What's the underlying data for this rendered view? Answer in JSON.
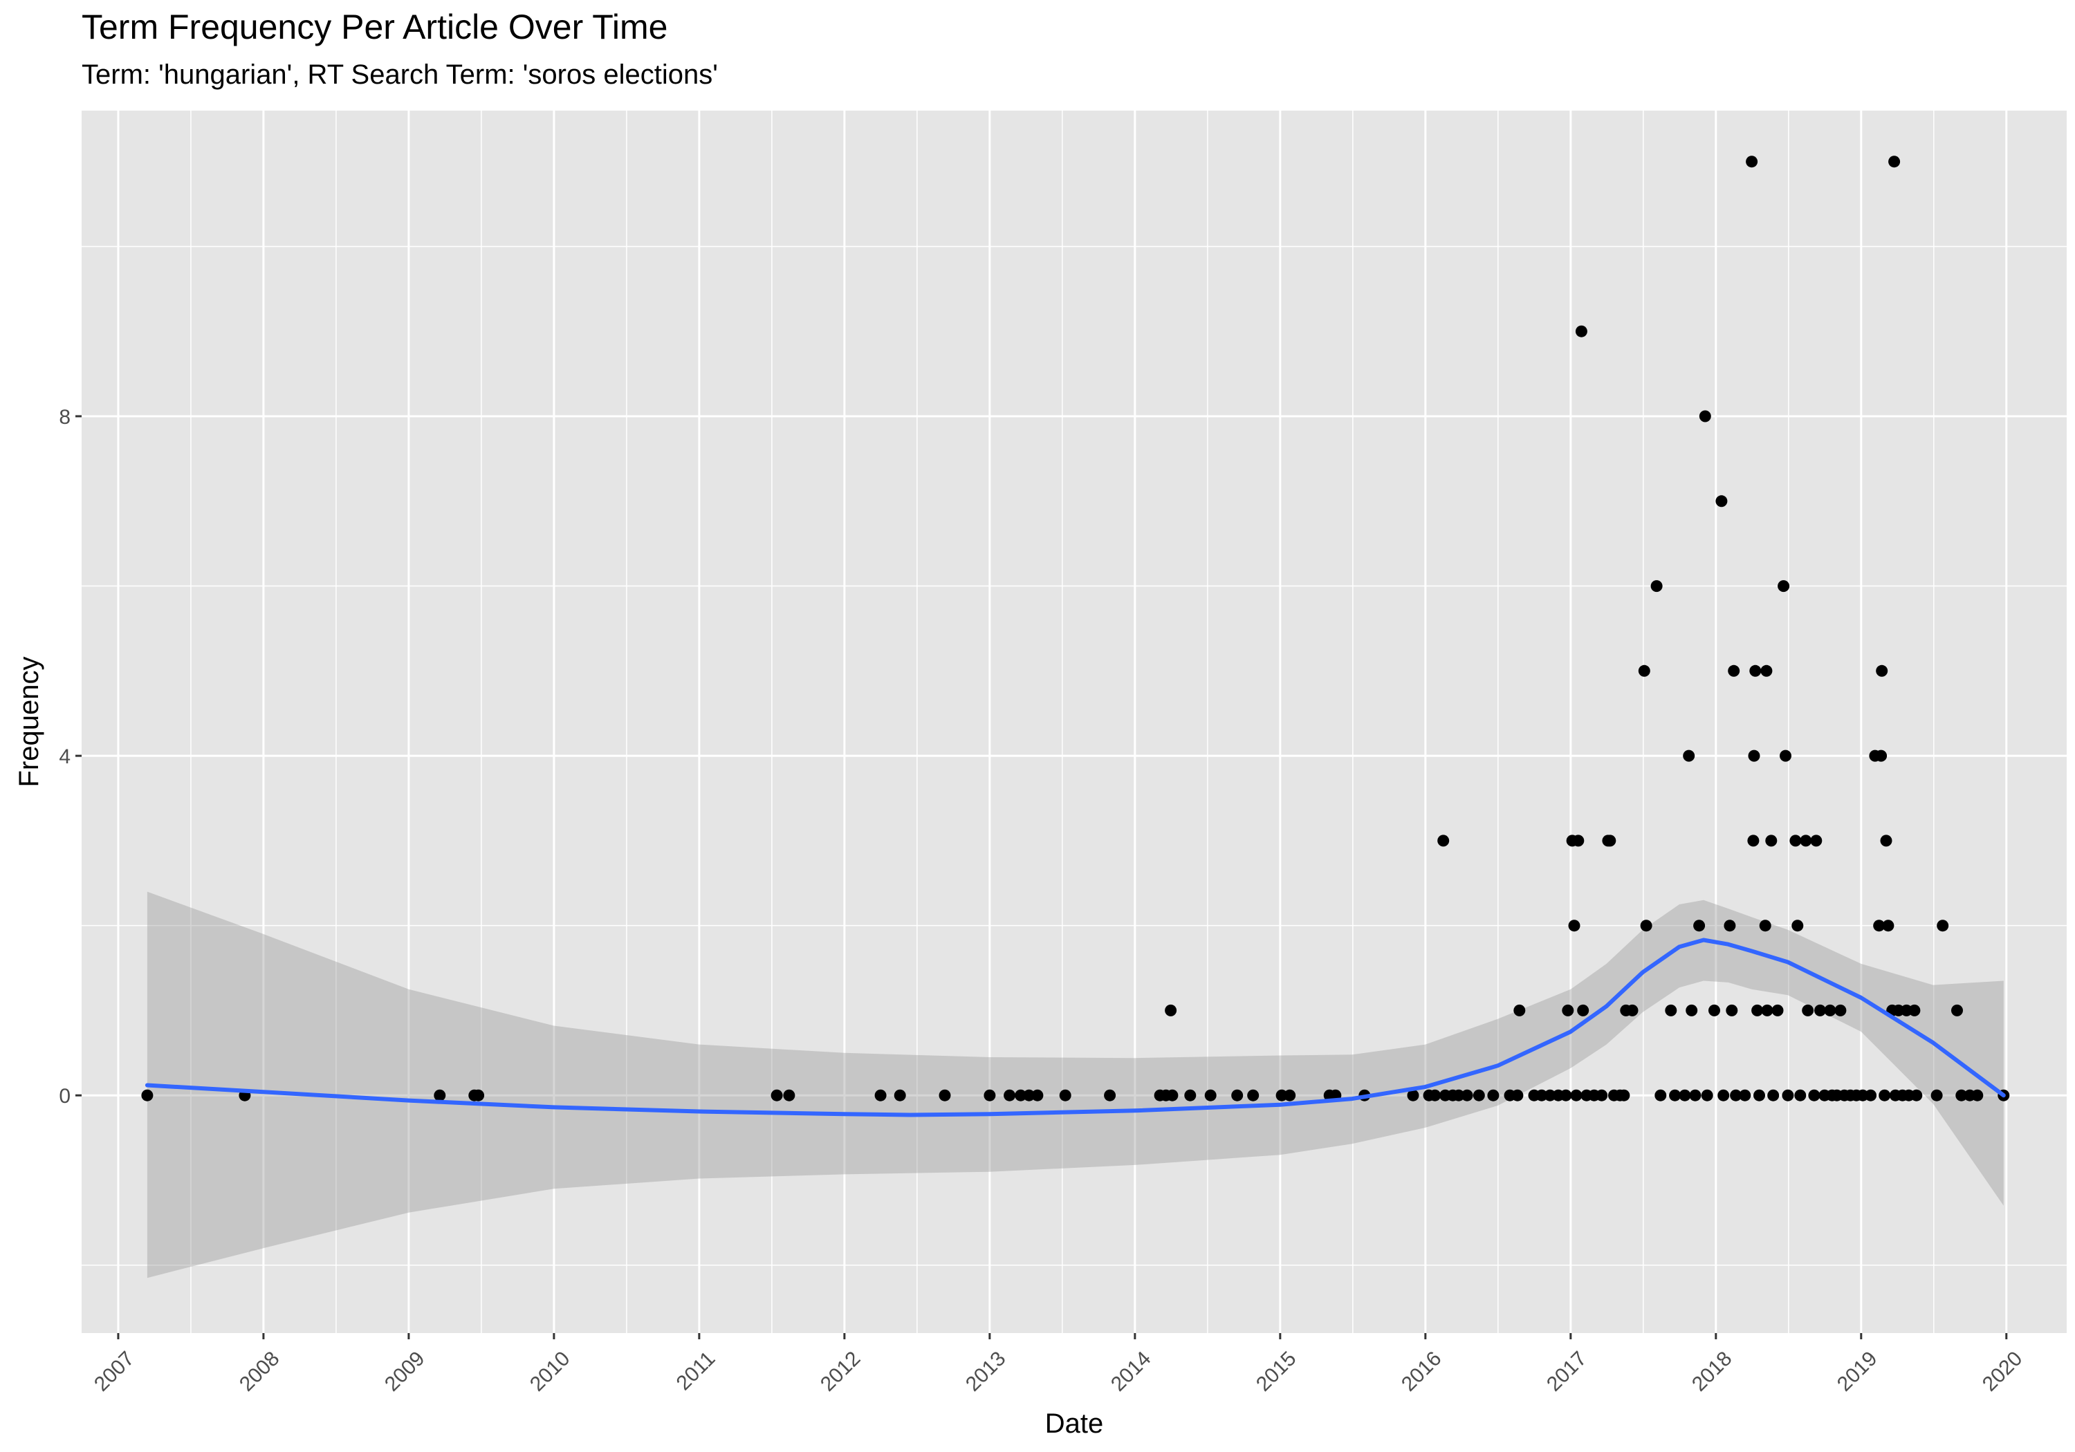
{
  "chart_data": {
    "type": "scatter",
    "title": "Term Frequency Per Article Over Time",
    "subtitle": "Term: 'hungarian', RT Search Term: 'soros elections'",
    "xlabel": "Date",
    "ylabel": "Frequency",
    "x_ticks": [
      "2007",
      "2008",
      "2009",
      "2010",
      "2011",
      "2012",
      "2013",
      "2014",
      "2015",
      "2016",
      "2017",
      "2018",
      "2019",
      "2020"
    ],
    "y_ticks": [
      0,
      4,
      8
    ],
    "xlim": [
      "2006-10-01",
      "2020-06-01"
    ],
    "ylim": [
      -2.8,
      11.6
    ],
    "grid": true,
    "legend": "none",
    "colors": {
      "panel": "#e5e5e5",
      "grid": "#ffffff",
      "points": "#000000",
      "smooth_line": "#3366ff",
      "band": "#999999"
    },
    "series": [
      {
        "type": "scatter",
        "points": [
          [
            "2007-03-15",
            0
          ],
          [
            "2007-11-15",
            0
          ],
          [
            "2009-03-20",
            0
          ],
          [
            "2009-06-15",
            0
          ],
          [
            "2009-06-25",
            0
          ],
          [
            "2011-07-15",
            0
          ],
          [
            "2011-08-15",
            0
          ],
          [
            "2012-04-01",
            0
          ],
          [
            "2012-05-20",
            0
          ],
          [
            "2012-09-10",
            0
          ],
          [
            "2013-01-01",
            0
          ],
          [
            "2013-02-20",
            0
          ],
          [
            "2013-03-20",
            0
          ],
          [
            "2013-04-10",
            0
          ],
          [
            "2013-05-01",
            0
          ],
          [
            "2013-07-10",
            0
          ],
          [
            "2013-10-30",
            0
          ],
          [
            "2014-03-05",
            0
          ],
          [
            "2014-03-20",
            0
          ],
          [
            "2014-04-01",
            1
          ],
          [
            "2014-04-05",
            0
          ],
          [
            "2014-05-20",
            0
          ],
          [
            "2014-07-10",
            0
          ],
          [
            "2014-09-15",
            0
          ],
          [
            "2014-10-25",
            0
          ],
          [
            "2015-01-05",
            0
          ],
          [
            "2015-01-25",
            0
          ],
          [
            "2015-05-05",
            0
          ],
          [
            "2015-05-20",
            0
          ],
          [
            "2015-08-01",
            0
          ],
          [
            "2015-12-01",
            0
          ],
          [
            "2016-01-10",
            0
          ],
          [
            "2016-01-25",
            0
          ],
          [
            "2016-02-15",
            3
          ],
          [
            "2016-02-20",
            0
          ],
          [
            "2016-03-10",
            0
          ],
          [
            "2016-03-25",
            0
          ],
          [
            "2016-04-15",
            0
          ],
          [
            "2016-05-15",
            0
          ],
          [
            "2016-06-20",
            0
          ],
          [
            "2016-08-01",
            0
          ],
          [
            "2016-08-20",
            0
          ],
          [
            "2016-08-25",
            1
          ],
          [
            "2016-10-01",
            0
          ],
          [
            "2016-10-20",
            0
          ],
          [
            "2016-11-10",
            0
          ],
          [
            "2016-12-01",
            0
          ],
          [
            "2016-12-20",
            0
          ],
          [
            "2016-12-25",
            1
          ],
          [
            "2017-01-05",
            3
          ],
          [
            "2017-01-10",
            2
          ],
          [
            "2017-01-15",
            0
          ],
          [
            "2017-01-20",
            3
          ],
          [
            "2017-01-28",
            9
          ],
          [
            "2017-02-01",
            1
          ],
          [
            "2017-02-10",
            0
          ],
          [
            "2017-03-01",
            0
          ],
          [
            "2017-03-20",
            0
          ],
          [
            "2017-04-05",
            3
          ],
          [
            "2017-04-10",
            3
          ],
          [
            "2017-04-20",
            0
          ],
          [
            "2017-05-05",
            0
          ],
          [
            "2017-05-15",
            0
          ],
          [
            "2017-05-20",
            1
          ],
          [
            "2017-06-05",
            1
          ],
          [
            "2017-07-05",
            5
          ],
          [
            "2017-07-10",
            2
          ],
          [
            "2017-08-05",
            6
          ],
          [
            "2017-08-15",
            0
          ],
          [
            "2017-09-10",
            1
          ],
          [
            "2017-09-20",
            0
          ],
          [
            "2017-10-15",
            0
          ],
          [
            "2017-10-25",
            4
          ],
          [
            "2017-11-01",
            1
          ],
          [
            "2017-11-10",
            0
          ],
          [
            "2017-11-20",
            2
          ],
          [
            "2017-12-05",
            8
          ],
          [
            "2017-12-10",
            0
          ],
          [
            "2017-12-28",
            1
          ],
          [
            "2018-01-15",
            7
          ],
          [
            "2018-01-20",
            0
          ],
          [
            "2018-02-05",
            2
          ],
          [
            "2018-02-10",
            1
          ],
          [
            "2018-02-15",
            5
          ],
          [
            "2018-02-20",
            0
          ],
          [
            "2018-03-15",
            0
          ],
          [
            "2018-04-01",
            11
          ],
          [
            "2018-04-05",
            3
          ],
          [
            "2018-04-07",
            4
          ],
          [
            "2018-04-10",
            5
          ],
          [
            "2018-04-15",
            1
          ],
          [
            "2018-04-20",
            0
          ],
          [
            "2018-05-05",
            2
          ],
          [
            "2018-05-08",
            5
          ],
          [
            "2018-05-10",
            1
          ],
          [
            "2018-05-20",
            3
          ],
          [
            "2018-05-25",
            0
          ],
          [
            "2018-06-05",
            1
          ],
          [
            "2018-06-20",
            6
          ],
          [
            "2018-06-25",
            4
          ],
          [
            "2018-07-01",
            0
          ],
          [
            "2018-07-20",
            3
          ],
          [
            "2018-07-25",
            2
          ],
          [
            "2018-08-01",
            0
          ],
          [
            "2018-08-15",
            3
          ],
          [
            "2018-08-20",
            1
          ],
          [
            "2018-09-05",
            0
          ],
          [
            "2018-09-10",
            3
          ],
          [
            "2018-09-20",
            1
          ],
          [
            "2018-10-01",
            0
          ],
          [
            "2018-10-15",
            1
          ],
          [
            "2018-10-20",
            0
          ],
          [
            "2018-11-01",
            0
          ],
          [
            "2018-11-10",
            1
          ],
          [
            "2018-11-20",
            0
          ],
          [
            "2018-12-05",
            0
          ],
          [
            "2018-12-20",
            0
          ],
          [
            "2019-01-05",
            0
          ],
          [
            "2019-01-25",
            0
          ],
          [
            "2019-02-05",
            4
          ],
          [
            "2019-02-15",
            2
          ],
          [
            "2019-02-20",
            4
          ],
          [
            "2019-02-22",
            5
          ],
          [
            "2019-03-01",
            0
          ],
          [
            "2019-03-05",
            3
          ],
          [
            "2019-03-10",
            2
          ],
          [
            "2019-03-20",
            1
          ],
          [
            "2019-03-25",
            11
          ],
          [
            "2019-03-28",
            0
          ],
          [
            "2019-04-05",
            1
          ],
          [
            "2019-04-15",
            0
          ],
          [
            "2019-04-25",
            1
          ],
          [
            "2019-05-01",
            0
          ],
          [
            "2019-05-15",
            1
          ],
          [
            "2019-05-20",
            0
          ],
          [
            "2019-07-10",
            0
          ],
          [
            "2019-07-25",
            2
          ],
          [
            "2019-08-30",
            1
          ],
          [
            "2019-09-10",
            0
          ],
          [
            "2019-10-01",
            0
          ],
          [
            "2019-10-20",
            0
          ],
          [
            "2019-12-25",
            0
          ]
        ]
      },
      {
        "type": "line",
        "name": "",
        "points": [
          [
            "2007-03-15",
            0.12
          ],
          [
            "2008-01-01",
            0.04
          ],
          [
            "2009-01-01",
            -0.06
          ],
          [
            "2010-01-01",
            -0.14
          ],
          [
            "2011-01-01",
            -0.19
          ],
          [
            "2012-01-01",
            -0.22
          ],
          [
            "2012-06-15",
            -0.23
          ],
          [
            "2013-01-01",
            -0.22
          ],
          [
            "2014-01-01",
            -0.18
          ],
          [
            "2015-01-01",
            -0.11
          ],
          [
            "2015-07-01",
            -0.04
          ],
          [
            "2016-01-01",
            0.1
          ],
          [
            "2016-07-01",
            0.35
          ],
          [
            "2017-01-01",
            0.75
          ],
          [
            "2017-04-01",
            1.05
          ],
          [
            "2017-07-01",
            1.45
          ],
          [
            "2017-10-01",
            1.75
          ],
          [
            "2017-12-01",
            1.83
          ],
          [
            "2018-02-01",
            1.78
          ],
          [
            "2018-04-01",
            1.7
          ],
          [
            "2018-07-01",
            1.57
          ],
          [
            "2019-01-01",
            1.15
          ],
          [
            "2019-07-01",
            0.62
          ],
          [
            "2019-12-25",
            0.0
          ]
        ]
      },
      {
        "type": "area",
        "name": "",
        "upper": [
          [
            "2007-03-15",
            2.4
          ],
          [
            "2008-01-01",
            1.9
          ],
          [
            "2009-01-01",
            1.25
          ],
          [
            "2010-01-01",
            0.82
          ],
          [
            "2011-01-01",
            0.6
          ],
          [
            "2012-01-01",
            0.5
          ],
          [
            "2013-01-01",
            0.45
          ],
          [
            "2014-01-01",
            0.44
          ],
          [
            "2015-01-01",
            0.47
          ],
          [
            "2015-07-01",
            0.48
          ],
          [
            "2016-01-01",
            0.6
          ],
          [
            "2016-07-01",
            0.9
          ],
          [
            "2017-01-01",
            1.25
          ],
          [
            "2017-04-01",
            1.55
          ],
          [
            "2017-07-01",
            1.95
          ],
          [
            "2017-10-01",
            2.25
          ],
          [
            "2017-12-01",
            2.3
          ],
          [
            "2018-02-01",
            2.2
          ],
          [
            "2018-04-01",
            2.1
          ],
          [
            "2018-07-01",
            1.95
          ],
          [
            "2019-01-01",
            1.55
          ],
          [
            "2019-07-01",
            1.3
          ],
          [
            "2019-12-25",
            1.35
          ]
        ],
        "lower": [
          [
            "2007-03-15",
            -2.15
          ],
          [
            "2008-01-01",
            -1.8
          ],
          [
            "2009-01-01",
            -1.38
          ],
          [
            "2010-01-01",
            -1.1
          ],
          [
            "2011-01-01",
            -0.98
          ],
          [
            "2012-01-01",
            -0.93
          ],
          [
            "2013-01-01",
            -0.9
          ],
          [
            "2014-01-01",
            -0.82
          ],
          [
            "2015-01-01",
            -0.7
          ],
          [
            "2015-07-01",
            -0.57
          ],
          [
            "2016-01-01",
            -0.38
          ],
          [
            "2016-07-01",
            -0.12
          ],
          [
            "2017-01-01",
            0.32
          ],
          [
            "2017-04-01",
            0.6
          ],
          [
            "2017-07-01",
            0.98
          ],
          [
            "2017-10-01",
            1.27
          ],
          [
            "2017-12-01",
            1.35
          ],
          [
            "2018-02-01",
            1.33
          ],
          [
            "2018-04-01",
            1.25
          ],
          [
            "2018-07-01",
            1.18
          ],
          [
            "2019-01-01",
            0.75
          ],
          [
            "2019-07-01",
            -0.1
          ],
          [
            "2019-12-25",
            -1.3
          ]
        ]
      }
    ]
  }
}
